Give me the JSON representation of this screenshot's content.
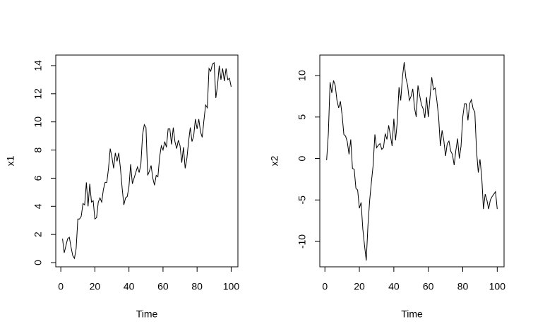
{
  "chart_data": [
    {
      "type": "line",
      "xlabel": "Time",
      "ylabel": "x1",
      "color": "#000000",
      "x": [
        1,
        2,
        3,
        4,
        5,
        6,
        7,
        8,
        9,
        10,
        11,
        12,
        13,
        14,
        15,
        16,
        17,
        18,
        19,
        20,
        21,
        22,
        23,
        24,
        25,
        26,
        27,
        28,
        29,
        30,
        31,
        32,
        33,
        34,
        35,
        36,
        37,
        38,
        39,
        40,
        41,
        42,
        43,
        44,
        45,
        46,
        47,
        48,
        49,
        50,
        51,
        52,
        53,
        54,
        55,
        56,
        57,
        58,
        59,
        60,
        61,
        62,
        63,
        64,
        65,
        66,
        67,
        68,
        69,
        70,
        71,
        72,
        73,
        74,
        75,
        76,
        77,
        78,
        79,
        80,
        81,
        82,
        83,
        84,
        85,
        86,
        87,
        88,
        89,
        90,
        91,
        92,
        93,
        94,
        95,
        96,
        97,
        98,
        99,
        100
      ],
      "values": [
        1.7,
        0.7,
        1.2,
        1.7,
        1.8,
        1.1,
        0.5,
        0.3,
        1.0,
        3.1,
        3.1,
        3.3,
        4.2,
        4.1,
        5.7,
        4.0,
        5.6,
        4.3,
        4.4,
        3.1,
        3.2,
        4.3,
        4.6,
        4.3,
        5.2,
        5.7,
        5.7,
        6.7,
        8.1,
        7.5,
        6.7,
        7.8,
        7.2,
        7.8,
        6.7,
        5.3,
        4.1,
        4.6,
        4.7,
        5.4,
        7.0,
        5.6,
        6.0,
        6.4,
        6.8,
        6.4,
        7.0,
        9.1,
        9.8,
        9.6,
        6.2,
        6.5,
        6.9,
        6.0,
        5.5,
        6.2,
        6.1,
        7.5,
        8.3,
        8.0,
        8.6,
        8.2,
        9.5,
        9.5,
        8.4,
        9.6,
        8.6,
        8.1,
        8.7,
        8.3,
        7.1,
        8.2,
        6.7,
        7.4,
        8.6,
        9.6,
        8.6,
        9.0,
        10.2,
        9.5,
        10.2,
        9.3,
        8.9,
        10.1,
        11.2,
        11.0,
        13.8,
        13.6,
        14.1,
        14.2,
        11.7,
        12.6,
        14.0,
        13.0,
        13.8,
        12.9,
        13.8,
        13.0,
        13.1,
        12.5
      ],
      "xlim": [
        -2.96,
        103.96
      ],
      "ylim": [
        -0.3,
        14.75
      ],
      "xticks": [
        0,
        20,
        40,
        60,
        80,
        100
      ],
      "yticks": [
        0,
        2,
        4,
        6,
        8,
        10,
        12,
        14
      ]
    },
    {
      "type": "line",
      "xlabel": "Time",
      "ylabel": "x2",
      "color": "#000000",
      "x": [
        1,
        2,
        3,
        4,
        5,
        6,
        7,
        8,
        9,
        10,
        11,
        12,
        13,
        14,
        15,
        16,
        17,
        18,
        19,
        20,
        21,
        22,
        23,
        24,
        25,
        26,
        27,
        28,
        29,
        30,
        31,
        32,
        33,
        34,
        35,
        36,
        37,
        38,
        39,
        40,
        41,
        42,
        43,
        44,
        45,
        46,
        47,
        48,
        49,
        50,
        51,
        52,
        53,
        54,
        55,
        56,
        57,
        58,
        59,
        60,
        61,
        62,
        63,
        64,
        65,
        66,
        67,
        68,
        69,
        70,
        71,
        72,
        73,
        74,
        75,
        76,
        77,
        78,
        79,
        80,
        81,
        82,
        83,
        84,
        85,
        86,
        87,
        88,
        89,
        90,
        91,
        92,
        93,
        94,
        95,
        96,
        97,
        98,
        99,
        100
      ],
      "values": [
        -0.2,
        3.0,
        9.2,
        7.9,
        9.4,
        8.8,
        7.0,
        6.1,
        6.9,
        5.2,
        2.9,
        2.7,
        2.0,
        0.5,
        2.3,
        -1.2,
        -1.3,
        -3.6,
        -3.8,
        -6.0,
        -5.3,
        -8.5,
        -10.5,
        -12.3,
        -8.0,
        -5.0,
        -2.8,
        -0.8,
        2.9,
        1.3,
        1.6,
        1.8,
        1.1,
        1.3,
        3.0,
        2.3,
        4.0,
        2.8,
        1.5,
        4.8,
        2.2,
        4.4,
        8.6,
        7.0,
        9.8,
        11.6,
        9.7,
        8.8,
        7.0,
        7.5,
        8.4,
        6.1,
        5.0,
        8.8,
        7.6,
        6.5,
        6.0,
        4.9,
        7.4,
        5.0,
        7.4,
        9.8,
        8.3,
        8.5,
        6.9,
        5.0,
        1.5,
        3.4,
        2.2,
        0.3,
        1.8,
        2.1,
        0.9,
        0.5,
        -0.8,
        1.0,
        2.4,
        0.0,
        1.5,
        5.0,
        6.6,
        6.6,
        4.6,
        6.6,
        7.1,
        6.0,
        5.6,
        0.9,
        -1.7,
        -0.1,
        -2.2,
        -6.1,
        -4.3,
        -5.0,
        -6.1,
        -5.0,
        -4.6,
        -4.3,
        -4.0,
        -6.1
      ],
      "xlim": [
        -2.96,
        103.96
      ],
      "ylim": [
        -13.06,
        12.47
      ],
      "xticks": [
        0,
        20,
        40,
        60,
        80,
        100
      ],
      "yticks": [
        -10,
        -5,
        0,
        5,
        10
      ]
    }
  ]
}
